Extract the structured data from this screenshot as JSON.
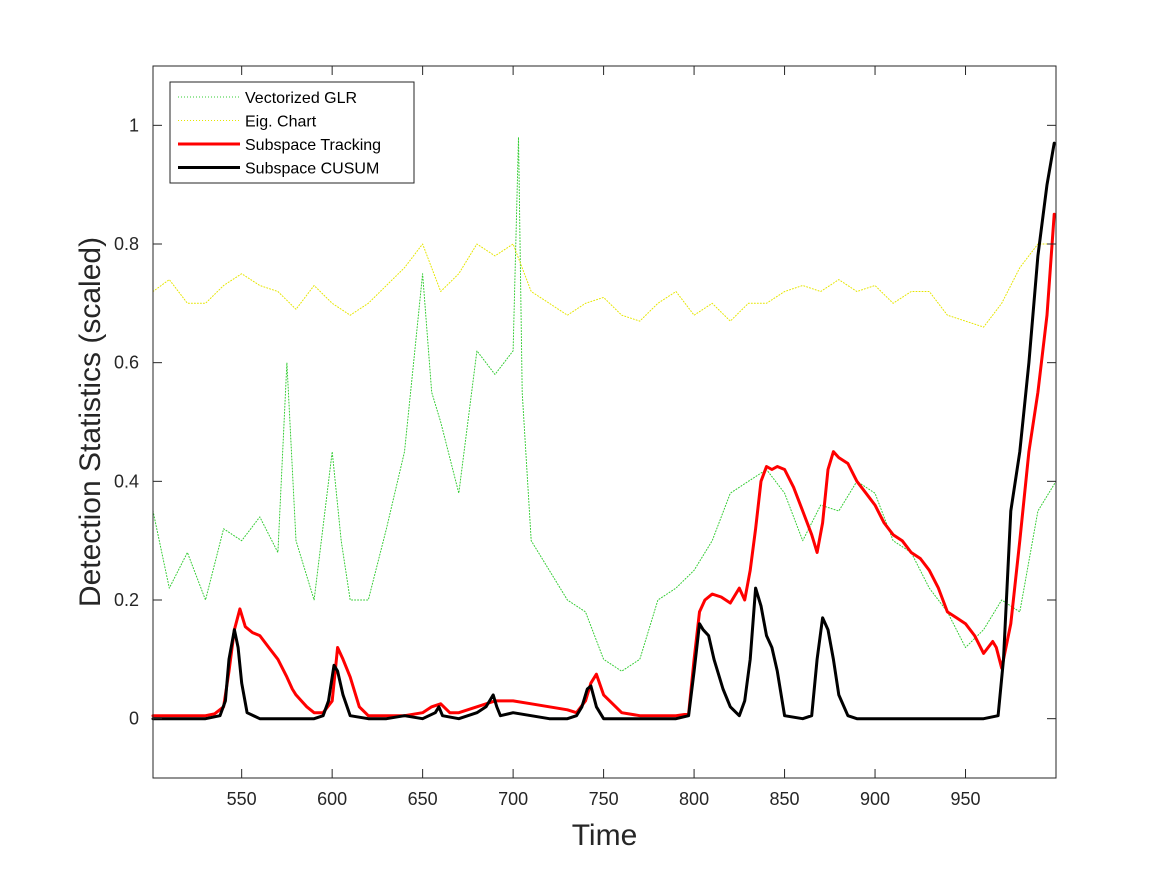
{
  "chart_data": {
    "type": "line",
    "title": "",
    "xlabel": "Time",
    "ylabel": "Detection Statistics (scaled)",
    "xlim": [
      501,
      1000
    ],
    "ylim": [
      -0.1,
      1.1
    ],
    "xticks": [
      550,
      600,
      650,
      700,
      750,
      800,
      850,
      900,
      950
    ],
    "yticks": [
      0,
      0.2,
      0.4,
      0.6,
      0.8,
      1
    ],
    "ytick_labels": [
      "0",
      "0.2",
      "0.4",
      "0.6",
      "0.8",
      "1"
    ],
    "legend_position": "top-left",
    "series": [
      {
        "name": "Vectorized GLR",
        "color": "#33cc33",
        "style": "dotted",
        "width": 1,
        "x": [
          501,
          510,
          520,
          530,
          540,
          550,
          560,
          570,
          575,
          580,
          590,
          600,
          605,
          610,
          620,
          630,
          640,
          645,
          650,
          655,
          660,
          670,
          680,
          690,
          700,
          703,
          705,
          710,
          720,
          730,
          740,
          750,
          760,
          770,
          780,
          790,
          800,
          810,
          820,
          830,
          840,
          850,
          860,
          870,
          880,
          890,
          900,
          910,
          920,
          930,
          940,
          950,
          960,
          970,
          980,
          990,
          1000
        ],
        "values": [
          0.35,
          0.22,
          0.28,
          0.2,
          0.32,
          0.3,
          0.34,
          0.28,
          0.6,
          0.3,
          0.2,
          0.45,
          0.3,
          0.2,
          0.2,
          0.32,
          0.45,
          0.6,
          0.75,
          0.55,
          0.5,
          0.38,
          0.62,
          0.58,
          0.62,
          0.98,
          0.55,
          0.3,
          0.25,
          0.2,
          0.18,
          0.1,
          0.08,
          0.1,
          0.2,
          0.22,
          0.25,
          0.3,
          0.38,
          0.4,
          0.42,
          0.38,
          0.3,
          0.36,
          0.35,
          0.4,
          0.38,
          0.3,
          0.28,
          0.22,
          0.18,
          0.12,
          0.15,
          0.2,
          0.18,
          0.35,
          0.4
        ]
      },
      {
        "name": "Eig. Chart",
        "color": "#e6e600",
        "style": "dotted",
        "width": 1,
        "x": [
          501,
          510,
          520,
          530,
          540,
          550,
          560,
          570,
          580,
          590,
          600,
          610,
          620,
          630,
          640,
          650,
          660,
          670,
          680,
          690,
          700,
          710,
          720,
          730,
          740,
          750,
          760,
          770,
          780,
          790,
          800,
          810,
          820,
          830,
          840,
          850,
          860,
          870,
          880,
          890,
          900,
          910,
          920,
          930,
          940,
          950,
          960,
          970,
          980,
          990,
          1000
        ],
        "values": [
          0.72,
          0.74,
          0.7,
          0.7,
          0.73,
          0.75,
          0.73,
          0.72,
          0.69,
          0.73,
          0.7,
          0.68,
          0.7,
          0.73,
          0.76,
          0.8,
          0.72,
          0.75,
          0.8,
          0.78,
          0.8,
          0.72,
          0.7,
          0.68,
          0.7,
          0.71,
          0.68,
          0.67,
          0.7,
          0.72,
          0.68,
          0.7,
          0.67,
          0.7,
          0.7,
          0.72,
          0.73,
          0.72,
          0.74,
          0.72,
          0.73,
          0.7,
          0.72,
          0.72,
          0.68,
          0.67,
          0.66,
          0.7,
          0.76,
          0.8,
          0.8
        ]
      },
      {
        "name": "Subspace Tracking",
        "color": "#ff0000",
        "style": "solid",
        "width": 3,
        "x": [
          501,
          510,
          520,
          530,
          535,
          540,
          543,
          546,
          549,
          552,
          556,
          560,
          565,
          570,
          575,
          578,
          580,
          583,
          586,
          590,
          595,
          600,
          603,
          606,
          610,
          615,
          620,
          625,
          630,
          640,
          650,
          655,
          660,
          665,
          670,
          680,
          690,
          700,
          710,
          720,
          730,
          735,
          740,
          743,
          746,
          750,
          760,
          770,
          780,
          790,
          797,
          800,
          803,
          806,
          810,
          815,
          820,
          825,
          828,
          831,
          834,
          837,
          840,
          843,
          846,
          850,
          855,
          860,
          865,
          868,
          871,
          874,
          877,
          880,
          885,
          890,
          895,
          900,
          905,
          910,
          915,
          920,
          925,
          930,
          935,
          940,
          945,
          950,
          955,
          960,
          965,
          967,
          970,
          975,
          980,
          985,
          990,
          995,
          999
        ],
        "values": [
          0.005,
          0.005,
          0.005,
          0.005,
          0.008,
          0.02,
          0.08,
          0.15,
          0.185,
          0.155,
          0.145,
          0.14,
          0.12,
          0.1,
          0.07,
          0.05,
          0.04,
          0.03,
          0.02,
          0.01,
          0.01,
          0.03,
          0.12,
          0.1,
          0.07,
          0.02,
          0.005,
          0.005,
          0.005,
          0.005,
          0.01,
          0.02,
          0.025,
          0.01,
          0.01,
          0.02,
          0.03,
          0.03,
          0.025,
          0.02,
          0.015,
          0.01,
          0.03,
          0.06,
          0.075,
          0.04,
          0.01,
          0.005,
          0.005,
          0.005,
          0.008,
          0.1,
          0.18,
          0.2,
          0.21,
          0.205,
          0.195,
          0.22,
          0.2,
          0.25,
          0.32,
          0.4,
          0.425,
          0.42,
          0.425,
          0.42,
          0.39,
          0.35,
          0.31,
          0.28,
          0.33,
          0.42,
          0.45,
          0.44,
          0.43,
          0.4,
          0.38,
          0.36,
          0.33,
          0.31,
          0.3,
          0.28,
          0.27,
          0.25,
          0.22,
          0.18,
          0.17,
          0.16,
          0.14,
          0.11,
          0.13,
          0.12,
          0.085,
          0.16,
          0.3,
          0.45,
          0.55,
          0.68,
          0.85
        ]
      },
      {
        "name": "Subspace CUSUM",
        "color": "#000000",
        "style": "solid",
        "width": 3,
        "x": [
          501,
          510,
          520,
          530,
          538,
          541,
          543,
          546,
          548,
          550,
          553,
          560,
          570,
          580,
          590,
          595,
          598,
          601,
          603,
          606,
          610,
          620,
          630,
          640,
          650,
          657,
          659,
          661,
          670,
          680,
          685,
          687,
          689,
          691,
          693,
          700,
          710,
          720,
          730,
          735,
          738,
          741,
          743,
          746,
          750,
          760,
          770,
          780,
          790,
          797,
          800,
          803,
          805,
          808,
          811,
          813,
          816,
          820,
          825,
          828,
          831,
          834,
          837,
          840,
          843,
          846,
          850,
          860,
          865,
          868,
          871,
          874,
          877,
          880,
          885,
          890,
          900,
          910,
          920,
          930,
          940,
          950,
          960,
          968,
          971,
          975,
          980,
          985,
          990,
          995,
          999
        ],
        "values": [
          0,
          0,
          0,
          0,
          0.005,
          0.03,
          0.1,
          0.15,
          0.12,
          0.06,
          0.01,
          0,
          0,
          0,
          0,
          0.005,
          0.03,
          0.09,
          0.08,
          0.04,
          0.005,
          0,
          0,
          0.005,
          0,
          0.01,
          0.02,
          0.005,
          0,
          0.01,
          0.02,
          0.03,
          0.04,
          0.02,
          0.005,
          0.01,
          0.005,
          0,
          0,
          0.005,
          0.02,
          0.05,
          0.055,
          0.02,
          0,
          0,
          0,
          0,
          0,
          0.005,
          0.08,
          0.16,
          0.15,
          0.14,
          0.1,
          0.08,
          0.05,
          0.02,
          0.005,
          0.03,
          0.1,
          0.22,
          0.19,
          0.14,
          0.12,
          0.08,
          0.005,
          0,
          0.005,
          0.1,
          0.17,
          0.15,
          0.1,
          0.04,
          0.005,
          0,
          0,
          0,
          0,
          0,
          0,
          0,
          0,
          0.005,
          0.1,
          0.35,
          0.45,
          0.6,
          0.78,
          0.9,
          0.97
        ]
      }
    ]
  }
}
